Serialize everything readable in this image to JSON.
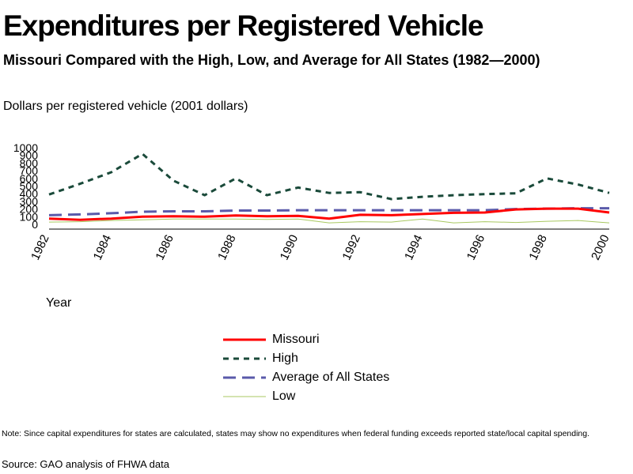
{
  "chart_data": {
    "type": "line",
    "title": "Expenditures per Registered Vehicle",
    "subtitle": "Missouri Compared with the High, Low, and Average for All States (1982—2000)",
    "ylabel": "Dollars per registered vehicle (2001 dollars)",
    "xlabel": "Year",
    "ylim": [
      0,
      1000
    ],
    "yticks": [
      0,
      100,
      200,
      300,
      400,
      500,
      600,
      700,
      800,
      900,
      1000
    ],
    "x": [
      1982,
      1983,
      1984,
      1985,
      1986,
      1987,
      1988,
      1989,
      1990,
      1991,
      1992,
      1993,
      1994,
      1995,
      1996,
      1997,
      1998,
      1999,
      2000
    ],
    "xticks": [
      "1982",
      "1984",
      "1986",
      "1988",
      "1990",
      "1992",
      "1994",
      "1996",
      "1998",
      "2000"
    ],
    "grid": false,
    "legend_position": "below",
    "series": [
      {
        "name": "Missouri",
        "color": "#ff0000",
        "style": "solid",
        "width": 3,
        "values": [
          75,
          60,
          75,
          100,
          105,
          100,
          115,
          105,
          110,
          75,
          125,
          120,
          135,
          150,
          155,
          195,
          205,
          205,
          155
        ]
      },
      {
        "name": "High",
        "color": "#1a4a3a",
        "style": "dotted",
        "width": 3,
        "values": [
          390,
          530,
          680,
          920,
          570,
          380,
          600,
          380,
          480,
          410,
          420,
          330,
          360,
          380,
          395,
          405,
          600,
          520,
          410
        ]
      },
      {
        "name": "Average of All States",
        "color": "#5a5aaa",
        "style": "dashed",
        "width": 3,
        "values": [
          120,
          130,
          145,
          165,
          170,
          170,
          180,
          180,
          185,
          185,
          185,
          185,
          185,
          185,
          185,
          200,
          205,
          210,
          210
        ]
      },
      {
        "name": "Low",
        "color": "#a8c860",
        "style": "solid",
        "width": 1,
        "values": [
          30,
          35,
          50,
          60,
          70,
          70,
          70,
          65,
          70,
          20,
          35,
          30,
          70,
          20,
          35,
          25,
          40,
          50,
          20
        ]
      }
    ]
  },
  "note": "Note: Since capital expenditures for states are calculated, states may show no expenditures when federal funding exceeds reported state/local capital spending.",
  "source": "Source: GAO analysis of FHWA data"
}
